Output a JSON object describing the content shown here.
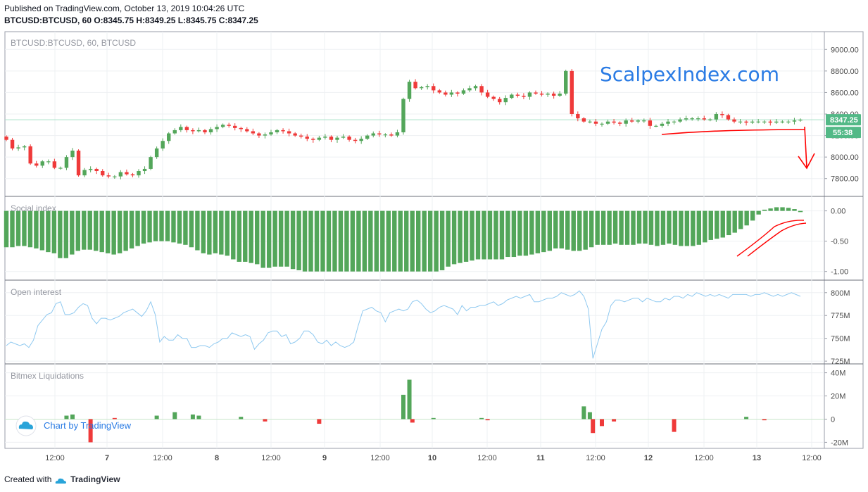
{
  "header": {
    "published": "Published on TradingView.com, October 13, 2019 10:04:26 UTC",
    "ohlc": "BTCUSD:BTCUSD, 60 O:8345.75 H:8349.25 L:8345.75 C:8347.25"
  },
  "footer": {
    "created_prefix": "Created with",
    "brand": "TradingView"
  },
  "watermark": "ScalpexIndex.com",
  "tv_logo_text": "Chart by TradingView",
  "last_price_label": "8347.25",
  "countdown_label": "55:38",
  "colors": {
    "up": "#53a65a",
    "down": "#ef3a3a",
    "oi_line": "#8fc9f0",
    "annotation": "#ff0000",
    "watermark": "#2a7be4"
  },
  "chart_data": [
    {
      "type": "candlestick",
      "title": "BTCUSD:BTCUSD, 60, BTCUSD",
      "ylim": [
        7700,
        9100
      ],
      "y_ticks": [
        "7800.00",
        "8000.00",
        "8200.00",
        "8400.00",
        "8600.00",
        "8800.00",
        "9000.00"
      ],
      "x_tick_labels": [
        "12:00",
        "7",
        "12:00",
        "8",
        "12:00",
        "9",
        "12:00",
        "10",
        "12:00",
        "11",
        "12:00",
        "12",
        "12:00",
        "13",
        "12:00"
      ],
      "close": [
        8160,
        8080,
        8090,
        8100,
        7940,
        7920,
        7960,
        7960,
        7900,
        7900,
        8000,
        8060,
        7830,
        7880,
        7890,
        7870,
        7830,
        7820,
        7820,
        7860,
        7840,
        7830,
        7870,
        7890,
        8000,
        8080,
        8150,
        8220,
        8250,
        8280,
        8250,
        8240,
        8250,
        8230,
        8260,
        8280,
        8300,
        8290,
        8270,
        8260,
        8240,
        8220,
        8200,
        8210,
        8230,
        8250,
        8240,
        8220,
        8200,
        8190,
        8170,
        8160,
        8180,
        8190,
        8160,
        8180,
        8190,
        8160,
        8150,
        8170,
        8200,
        8220,
        8210,
        8210,
        8200,
        8230,
        8540,
        8700,
        8640,
        8650,
        8660,
        8620,
        8600,
        8580,
        8600,
        8590,
        8620,
        8640,
        8660,
        8600,
        8560,
        8540,
        8510,
        8550,
        8580,
        8570,
        8560,
        8600,
        8590,
        8580,
        8590,
        8570,
        8590,
        8800,
        8400,
        8360,
        8330,
        8330,
        8310,
        8310,
        8330,
        8320,
        8310,
        8340,
        8330,
        8340,
        8340,
        8290,
        8290,
        8310,
        8330,
        8330,
        8350,
        8360,
        8360,
        8360,
        8350,
        8350,
        8400,
        8390,
        8350,
        8330,
        8330,
        8320,
        8330,
        8330,
        8330,
        8320,
        8330,
        8330,
        8330,
        8340,
        8347.25
      ],
      "note": "hourly OHLC candles; one close value per candle from first visible to last"
    },
    {
      "type": "bar",
      "title": "Social index",
      "ylim": [
        -1.05,
        0.1
      ],
      "y_ticks": [
        "-1.00",
        "-0.50",
        "0.00"
      ],
      "values": [
        -0.6,
        -0.6,
        -0.58,
        -0.58,
        -0.6,
        -0.62,
        -0.65,
        -0.68,
        -0.7,
        -0.78,
        -0.78,
        -0.72,
        -0.66,
        -0.64,
        -0.64,
        -0.66,
        -0.68,
        -0.7,
        -0.72,
        -0.7,
        -0.66,
        -0.62,
        -0.58,
        -0.54,
        -0.52,
        -0.5,
        -0.5,
        -0.5,
        -0.52,
        -0.54,
        -0.56,
        -0.6,
        -0.65,
        -0.7,
        -0.72,
        -0.7,
        -0.72,
        -0.74,
        -0.8,
        -0.84,
        -0.84,
        -0.86,
        -0.88,
        -0.94,
        -0.94,
        -0.92,
        -0.92,
        -0.92,
        -0.96,
        -0.98,
        -1.0,
        -1.0,
        -1.0,
        -1.0,
        -1.0,
        -1.0,
        -1.0,
        -1.0,
        -1.0,
        -1.0,
        -1.0,
        -1.0,
        -1.0,
        -1.0,
        -1.0,
        -1.0,
        -1.0,
        -1.0,
        -1.0,
        -1.0,
        -1.0,
        -1.0,
        -1.0,
        -0.98,
        -0.92,
        -0.88,
        -0.86,
        -0.84,
        -0.82,
        -0.8,
        -0.8,
        -0.8,
        -0.8,
        -0.8,
        -0.76,
        -0.76,
        -0.74,
        -0.74,
        -0.72,
        -0.7,
        -0.68,
        -0.66,
        -0.62,
        -0.62,
        -0.64,
        -0.66,
        -0.66,
        -0.64,
        -0.6,
        -0.56,
        -0.56,
        -0.56,
        -0.54,
        -0.56,
        -0.56,
        -0.56,
        -0.54,
        -0.54,
        -0.56,
        -0.58,
        -0.56,
        -0.54,
        -0.56,
        -0.58,
        -0.58,
        -0.58,
        -0.56,
        -0.52,
        -0.48,
        -0.46,
        -0.44,
        -0.4,
        -0.36,
        -0.3,
        -0.24,
        -0.16,
        -0.06,
        0.02,
        0.04,
        0.06,
        0.06,
        0.05,
        0.03,
        -0.02
      ],
      "note": "green bars in the 'Social index' pane"
    },
    {
      "type": "line",
      "title": "Open interest",
      "ylim": [
        722,
        806
      ],
      "y_ticks": [
        "725M",
        "750M",
        "775M",
        "800M"
      ],
      "values": [
        742,
        746,
        744,
        742,
        744,
        740,
        748,
        764,
        770,
        776,
        778,
        788,
        790,
        776,
        776,
        778,
        784,
        788,
        786,
        772,
        766,
        772,
        772,
        770,
        772,
        774,
        778,
        780,
        782,
        778,
        774,
        780,
        790,
        776,
        746,
        752,
        748,
        748,
        754,
        750,
        750,
        740,
        740,
        742,
        742,
        740,
        744,
        746,
        750,
        750,
        756,
        754,
        752,
        754,
        752,
        738,
        744,
        748,
        756,
        758,
        758,
        752,
        754,
        744,
        746,
        750,
        758,
        758,
        754,
        746,
        744,
        748,
        742,
        746,
        742,
        740,
        742,
        746,
        764,
        780,
        782,
        784,
        780,
        778,
        768,
        778,
        780,
        782,
        780,
        782,
        790,
        792,
        788,
        782,
        778,
        780,
        784,
        786,
        784,
        782,
        776,
        786,
        780,
        784,
        784,
        786,
        786,
        788,
        790,
        786,
        788,
        792,
        794,
        796,
        794,
        796,
        798,
        790,
        790,
        792,
        794,
        794,
        796,
        800,
        798,
        796,
        798,
        802,
        796,
        782,
        728,
        744,
        760,
        768,
        786,
        792,
        792,
        790,
        792,
        794,
        794,
        790,
        794,
        792,
        790,
        790,
        794,
        792,
        796,
        796,
        794,
        798,
        796,
        800,
        798,
        796,
        798,
        796,
        798,
        796,
        794,
        798,
        798,
        798,
        798,
        796,
        798,
        798,
        800,
        798,
        796,
        798,
        796,
        798,
        800,
        798,
        796
      ],
      "note": "light blue line in the 'Open interest' pane"
    },
    {
      "type": "bar",
      "title": "Bitmex Liquidations",
      "ylim": [
        -24,
        44
      ],
      "y_ticks": [
        "-20M",
        "0",
        "20M",
        "40M"
      ],
      "items": [
        {
          "x": 10,
          "value": 3,
          "color": "green"
        },
        {
          "x": 11,
          "value": 4,
          "color": "green"
        },
        {
          "x": 14,
          "value": -20,
          "color": "red"
        },
        {
          "x": 18,
          "value": 1,
          "color": "red"
        },
        {
          "x": 25,
          "value": 3,
          "color": "green"
        },
        {
          "x": 28,
          "value": 6,
          "color": "green"
        },
        {
          "x": 31,
          "value": 4,
          "color": "green"
        },
        {
          "x": 32,
          "value": 3,
          "color": "green"
        },
        {
          "x": 39,
          "value": 2,
          "color": "green"
        },
        {
          "x": 43,
          "value": -2,
          "color": "red"
        },
        {
          "x": 52,
          "value": -4,
          "color": "red"
        },
        {
          "x": 66,
          "value": 21,
          "color": "green"
        },
        {
          "x": 67,
          "value": 34,
          "color": "green"
        },
        {
          "x": 67.5,
          "value": -3,
          "color": "red"
        },
        {
          "x": 71,
          "value": 1,
          "color": "green"
        },
        {
          "x": 79,
          "value": 1,
          "color": "green"
        },
        {
          "x": 80,
          "value": -1,
          "color": "red"
        },
        {
          "x": 96,
          "value": 11,
          "color": "green"
        },
        {
          "x": 97,
          "value": 6,
          "color": "green"
        },
        {
          "x": 97.5,
          "value": -12,
          "color": "red"
        },
        {
          "x": 99,
          "value": -6,
          "color": "red"
        },
        {
          "x": 101,
          "value": -2,
          "color": "red"
        },
        {
          "x": 111,
          "value": -11,
          "color": "red"
        },
        {
          "x": 123,
          "value": 2,
          "color": "green"
        },
        {
          "x": 126,
          "value": -1,
          "color": "red"
        }
      ],
      "note": "x is candle index; positive green, negative red"
    }
  ]
}
